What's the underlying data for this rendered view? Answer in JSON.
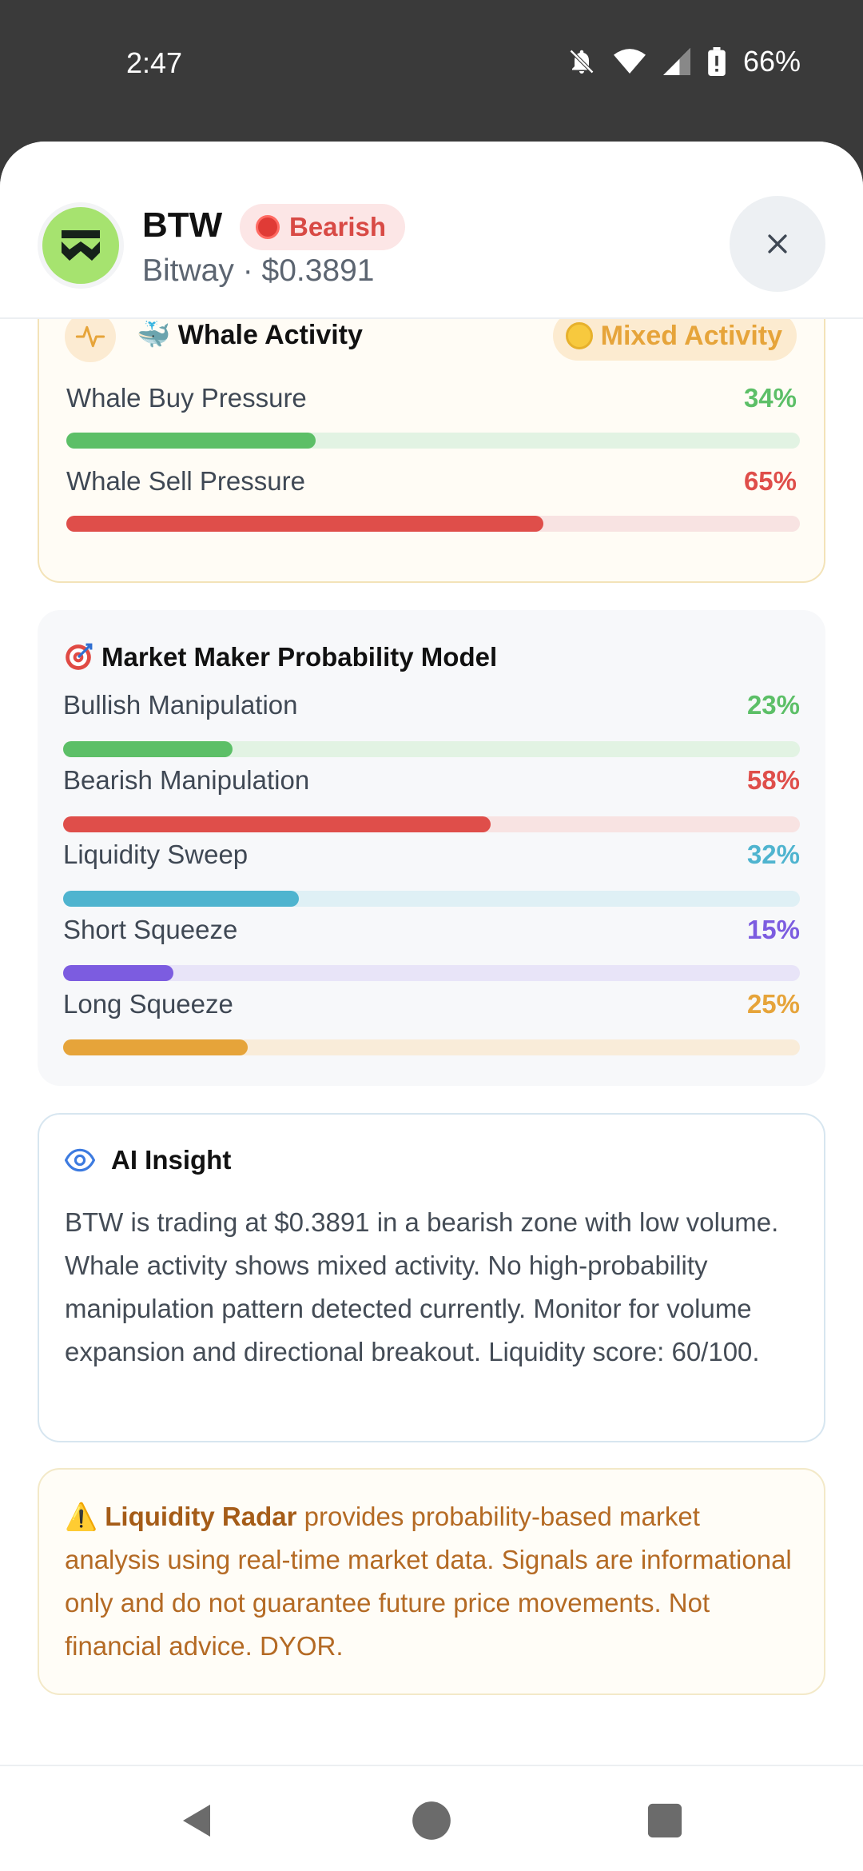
{
  "status_bar": {
    "time": "2:47",
    "battery": "66%"
  },
  "header": {
    "ticker": "BTW",
    "sentiment_badge": "Bearish",
    "subtitle": "Bitway · $0.3891",
    "close_label": "Close"
  },
  "whale": {
    "title": "🐳 Whale Activity",
    "badge": "Mixed Activity",
    "rows": [
      {
        "label": "Whale Buy Pressure",
        "pct_text": "34%",
        "value": 34,
        "color": "#5cbf67",
        "track": "#e2f3e3"
      },
      {
        "label": "Whale Sell Pressure",
        "pct_text": "65%",
        "value": 65,
        "color": "#df4e4a",
        "track": "#f8e3e2"
      }
    ]
  },
  "market_maker": {
    "title": "Market Maker Probability Model",
    "rows": [
      {
        "label": "Bullish Manipulation",
        "pct_text": "23%",
        "value": 23,
        "color": "#5cbf67",
        "track": "#e2f3e3"
      },
      {
        "label": "Bearish Manipulation",
        "pct_text": "58%",
        "value": 58,
        "color": "#df4e4a",
        "track": "#f8e3e2"
      },
      {
        "label": "Liquidity Sweep",
        "pct_text": "32%",
        "value": 32,
        "color": "#4fb4cf",
        "track": "#dff0f5"
      },
      {
        "label": "Short Squeeze",
        "pct_text": "15%",
        "value": 15,
        "color": "#7c5ce0",
        "track": "#e8e4f8"
      },
      {
        "label": "Long Squeeze",
        "pct_text": "25%",
        "value": 25,
        "color": "#e6a43a",
        "track": "#f9ecd9"
      }
    ]
  },
  "ai_insight": {
    "title": "AI Insight",
    "body": "BTW is trading at $0.3891 in a bearish zone with low volume. Whale activity shows mixed activity. No high-probability manipulation pattern detected currently. Monitor for volume expansion and directional breakout. Liquidity score: 60/100."
  },
  "disclaimer": {
    "icon": "⚠️",
    "strong": "Liquidity Radar",
    "text": " provides probability-based market analysis using real-time market data. Signals are informational only and do not guarantee future price movements. Not financial advice. DYOR."
  },
  "colors": {
    "bearish": "#d84a45",
    "mixed": "#e6a43a",
    "accent_blue": "#3d7be0"
  }
}
